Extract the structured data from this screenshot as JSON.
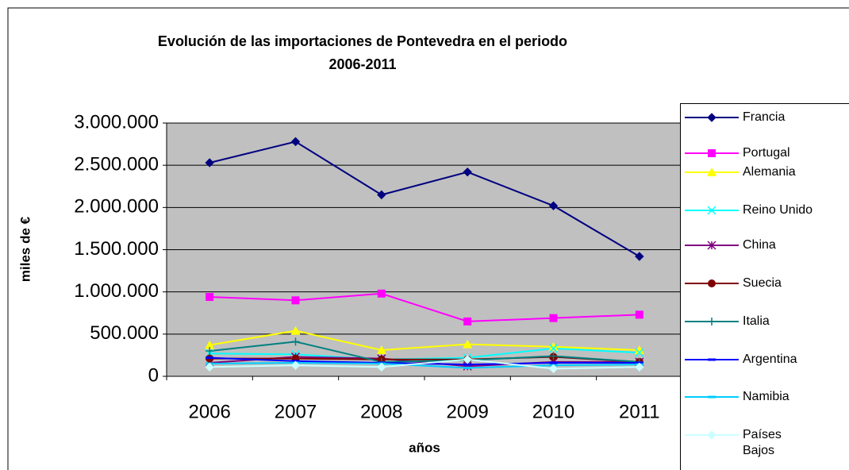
{
  "chart_data": {
    "type": "line",
    "title": [
      "Evolución de las importaciones de Pontevedra en el periodo",
      "2006-2011"
    ],
    "x_label": "años",
    "y_label": "miles de €",
    "categories": [
      "2006",
      "2007",
      "2008",
      "2009",
      "2010",
      "2011"
    ],
    "ylim": [
      0,
      3000000
    ],
    "yticks": [
      0,
      {
        "value": 500000,
        "label": "500.000"
      },
      {
        "value": 1000000,
        "label": "1.000.000"
      },
      {
        "value": 1500000,
        "label": "1.500.000"
      },
      {
        "value": 2000000,
        "label": "2.000.000"
      },
      {
        "value": 2500000,
        "label": "2.500.000"
      },
      {
        "value": 3000000,
        "label": "3.000.000"
      }
    ],
    "grid": true,
    "legend": "right",
    "series": [
      {
        "name": "Francia",
        "color": "#000080",
        "marker": "diamond",
        "values": [
          2530000,
          2780000,
          2150000,
          2420000,
          2020000,
          1420000
        ]
      },
      {
        "name": "Portugal",
        "color": "#ff00ff",
        "marker": "square",
        "values": [
          940000,
          900000,
          980000,
          650000,
          690000,
          730000
        ]
      },
      {
        "name": "Alemania",
        "color": "#ffff00",
        "marker": "triangle",
        "values": [
          370000,
          540000,
          310000,
          380000,
          350000,
          310000
        ]
      },
      {
        "name": "Reino Unido",
        "color": "#00ffff",
        "marker": "x",
        "values": [
          270000,
          260000,
          200000,
          220000,
          330000,
          280000
        ]
      },
      {
        "name": "China",
        "color": "#800080",
        "marker": "star",
        "values": [
          160000,
          230000,
          210000,
          120000,
          170000,
          170000
        ]
      },
      {
        "name": "Suecia",
        "color": "#800000",
        "marker": "circle",
        "values": [
          210000,
          210000,
          200000,
          200000,
          230000,
          170000
        ]
      },
      {
        "name": "Italia",
        "color": "#008080",
        "marker": "plus",
        "values": [
          300000,
          410000,
          170000,
          190000,
          240000,
          170000
        ]
      },
      {
        "name": "Argentina",
        "color": "#0000ff",
        "marker": "dash",
        "values": [
          220000,
          180000,
          160000,
          140000,
          160000,
          160000
        ]
      },
      {
        "name": "Namibia",
        "color": "#00ccff",
        "marker": "dash",
        "values": [
          150000,
          160000,
          150000,
          100000,
          130000,
          140000
        ]
      },
      {
        "name": "Países Bajos",
        "color": "#ccffff",
        "marker": "diamond",
        "values": [
          110000,
          130000,
          110000,
          200000,
          90000,
          110000
        ]
      }
    ]
  }
}
